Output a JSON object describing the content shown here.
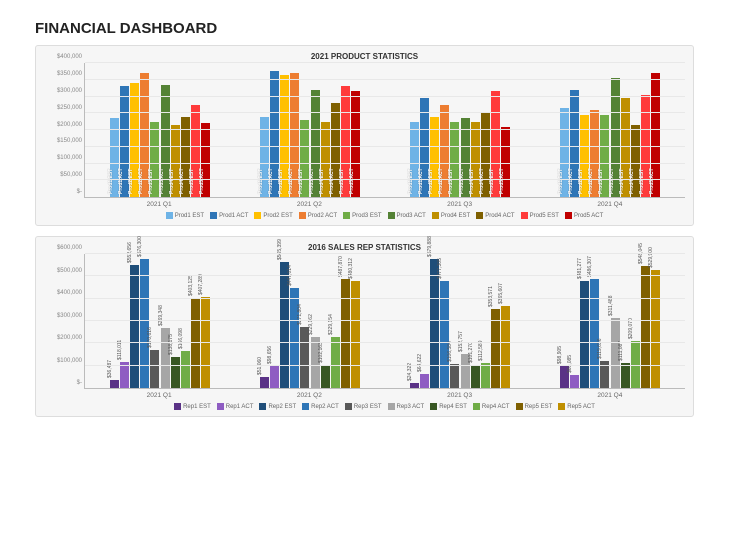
{
  "title": "FINANCIAL DASHBOARD",
  "chart1": {
    "title": "2021 PRODUCT STATISTICS",
    "type": "bar",
    "background_color": "#f6f6f6",
    "grid_color": "#e8e8e8",
    "ylim": [
      0,
      400000
    ],
    "ytick_step": 50000,
    "yprefix": "$",
    "series": [
      {
        "name": "Prod1 EST",
        "color": "#6eb3e6"
      },
      {
        "name": "Prod1 ACT",
        "color": "#2e75b6"
      },
      {
        "name": "Prod2 EST",
        "color": "#ffc000"
      },
      {
        "name": "Prod2 ACT",
        "color": "#ed7d31"
      },
      {
        "name": "Prod3 EST",
        "color": "#70ad47"
      },
      {
        "name": "Prod3 ACT",
        "color": "#548235"
      },
      {
        "name": "Prod4 EST",
        "color": "#bf8f00"
      },
      {
        "name": "Prod4 ACT",
        "color": "#7f6000"
      },
      {
        "name": "Prod5 EST",
        "color": "#ff3b3b"
      },
      {
        "name": "Prod5 ACT",
        "color": "#c00000"
      }
    ],
    "categories": [
      "2021 Q1",
      "2021 Q2",
      "2021 Q3",
      "2021 Q4"
    ],
    "data": [
      [
        235000,
        330000,
        340000,
        370000,
        225000,
        335000,
        215000,
        240000,
        275000,
        220000
      ],
      [
        240000,
        375000,
        365000,
        370000,
        230000,
        320000,
        225000,
        280000,
        330000,
        315000
      ],
      [
        225000,
        295000,
        240000,
        275000,
        225000,
        235000,
        225000,
        250000,
        315000,
        210000
      ],
      [
        265000,
        320000,
        245000,
        260000,
        245000,
        355000,
        295000,
        215000,
        305000,
        370000
      ]
    ],
    "show_bar_labels": true,
    "show_value_labels": false
  },
  "chart2": {
    "title": "2016 SALES REP STATISTICS",
    "type": "bar",
    "background_color": "#f6f6f6",
    "grid_color": "#e8e8e8",
    "ylim": [
      0,
      600000
    ],
    "ytick_step": 100000,
    "yprefix": "$",
    "series": [
      {
        "name": "Rep1 EST",
        "color": "#5a3286"
      },
      {
        "name": "Rep1 ACT",
        "color": "#8e5cc2"
      },
      {
        "name": "Rep2 EST",
        "color": "#1f4e79"
      },
      {
        "name": "Rep2 ACT",
        "color": "#2e75b6"
      },
      {
        "name": "Rep3 EST",
        "color": "#595959"
      },
      {
        "name": "Rep3 ACT",
        "color": "#a6a6a6"
      },
      {
        "name": "Rep4 EST",
        "color": "#385723"
      },
      {
        "name": "Rep4 ACT",
        "color": "#70ad47"
      },
      {
        "name": "Rep5 EST",
        "color": "#7f6000"
      },
      {
        "name": "Rep5 ACT",
        "color": "#bf8f00"
      }
    ],
    "categories": [
      "2021 Q1",
      "2021 Q2",
      "2021 Q3",
      "2021 Q4"
    ],
    "data": [
      [
        36487,
        118011,
        552656,
        576300,
        170616,
        269348,
        138175,
        166098,
        403125,
        407289
      ],
      [
        51060,
        98656,
        565399,
        447014,
        271804,
        229162,
        102163,
        229154,
        487870,
        480312
      ],
      [
        24322,
        64622,
        579888,
        477305,
        106584,
        152757,
        101270,
        112589,
        353571,
        365607
      ],
      [
        98905,
        60085,
        481277,
        486307,
        119636,
        311488,
        111087,
        209070,
        548045,
        529900
      ]
    ],
    "show_bar_labels": false,
    "show_value_labels": true
  }
}
